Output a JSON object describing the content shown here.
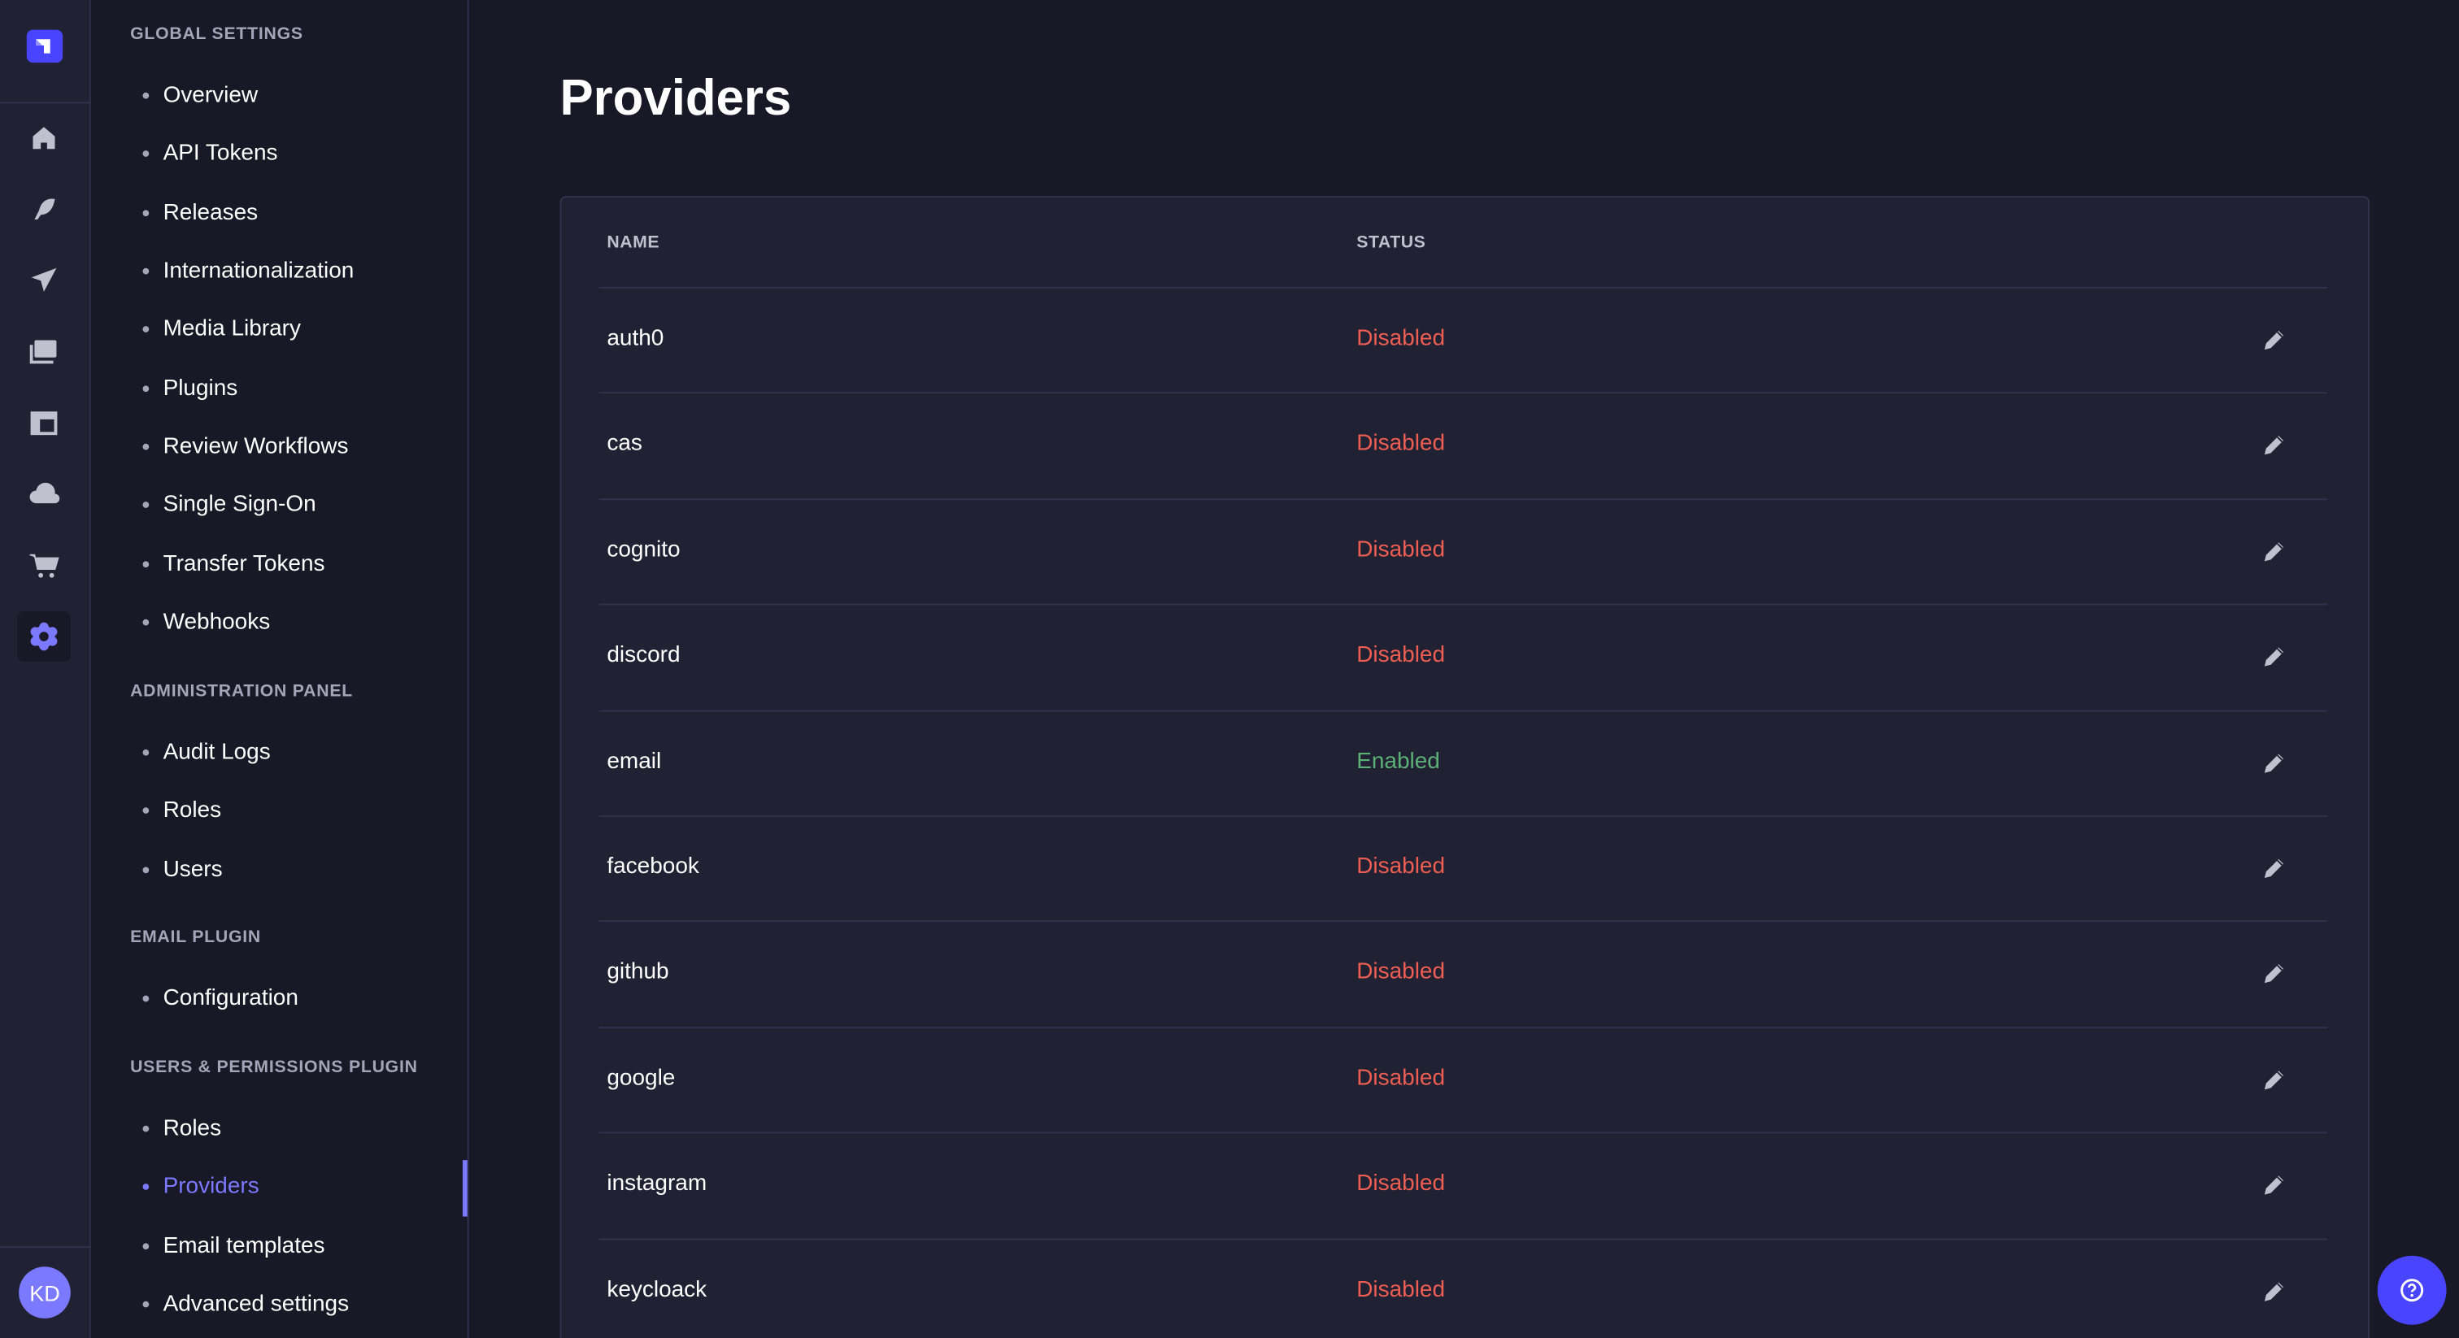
{
  "user": {
    "initials": "KD"
  },
  "sidebar": {
    "sections": [
      {
        "title": "GLOBAL SETTINGS",
        "items": [
          "Overview",
          "API Tokens",
          "Releases",
          "Internationalization",
          "Media Library",
          "Plugins",
          "Review Workflows",
          "Single Sign-On",
          "Transfer Tokens",
          "Webhooks"
        ]
      },
      {
        "title": "ADMINISTRATION PANEL",
        "items": [
          "Audit Logs",
          "Roles",
          "Users"
        ]
      },
      {
        "title": "EMAIL PLUGIN",
        "items": [
          "Configuration"
        ]
      },
      {
        "title": "USERS & PERMISSIONS PLUGIN",
        "items": [
          "Roles",
          "Providers",
          "Email templates",
          "Advanced settings"
        ]
      }
    ],
    "active_item": "Providers"
  },
  "main": {
    "title": "Providers",
    "table": {
      "headers": {
        "name": "NAME",
        "status": "STATUS"
      },
      "rows": [
        {
          "name": "auth0",
          "status": "Disabled"
        },
        {
          "name": "cas",
          "status": "Disabled"
        },
        {
          "name": "cognito",
          "status": "Disabled"
        },
        {
          "name": "discord",
          "status": "Disabled"
        },
        {
          "name": "email",
          "status": "Enabled"
        },
        {
          "name": "facebook",
          "status": "Disabled"
        },
        {
          "name": "github",
          "status": "Disabled"
        },
        {
          "name": "google",
          "status": "Disabled"
        },
        {
          "name": "instagram",
          "status": "Disabled"
        },
        {
          "name": "keycloack",
          "status": "Disabled"
        }
      ]
    }
  },
  "colors": {
    "accent": "#7b79ff",
    "brand": "#4945ff",
    "disabled": "#ee5e52",
    "enabled": "#5cb176"
  }
}
